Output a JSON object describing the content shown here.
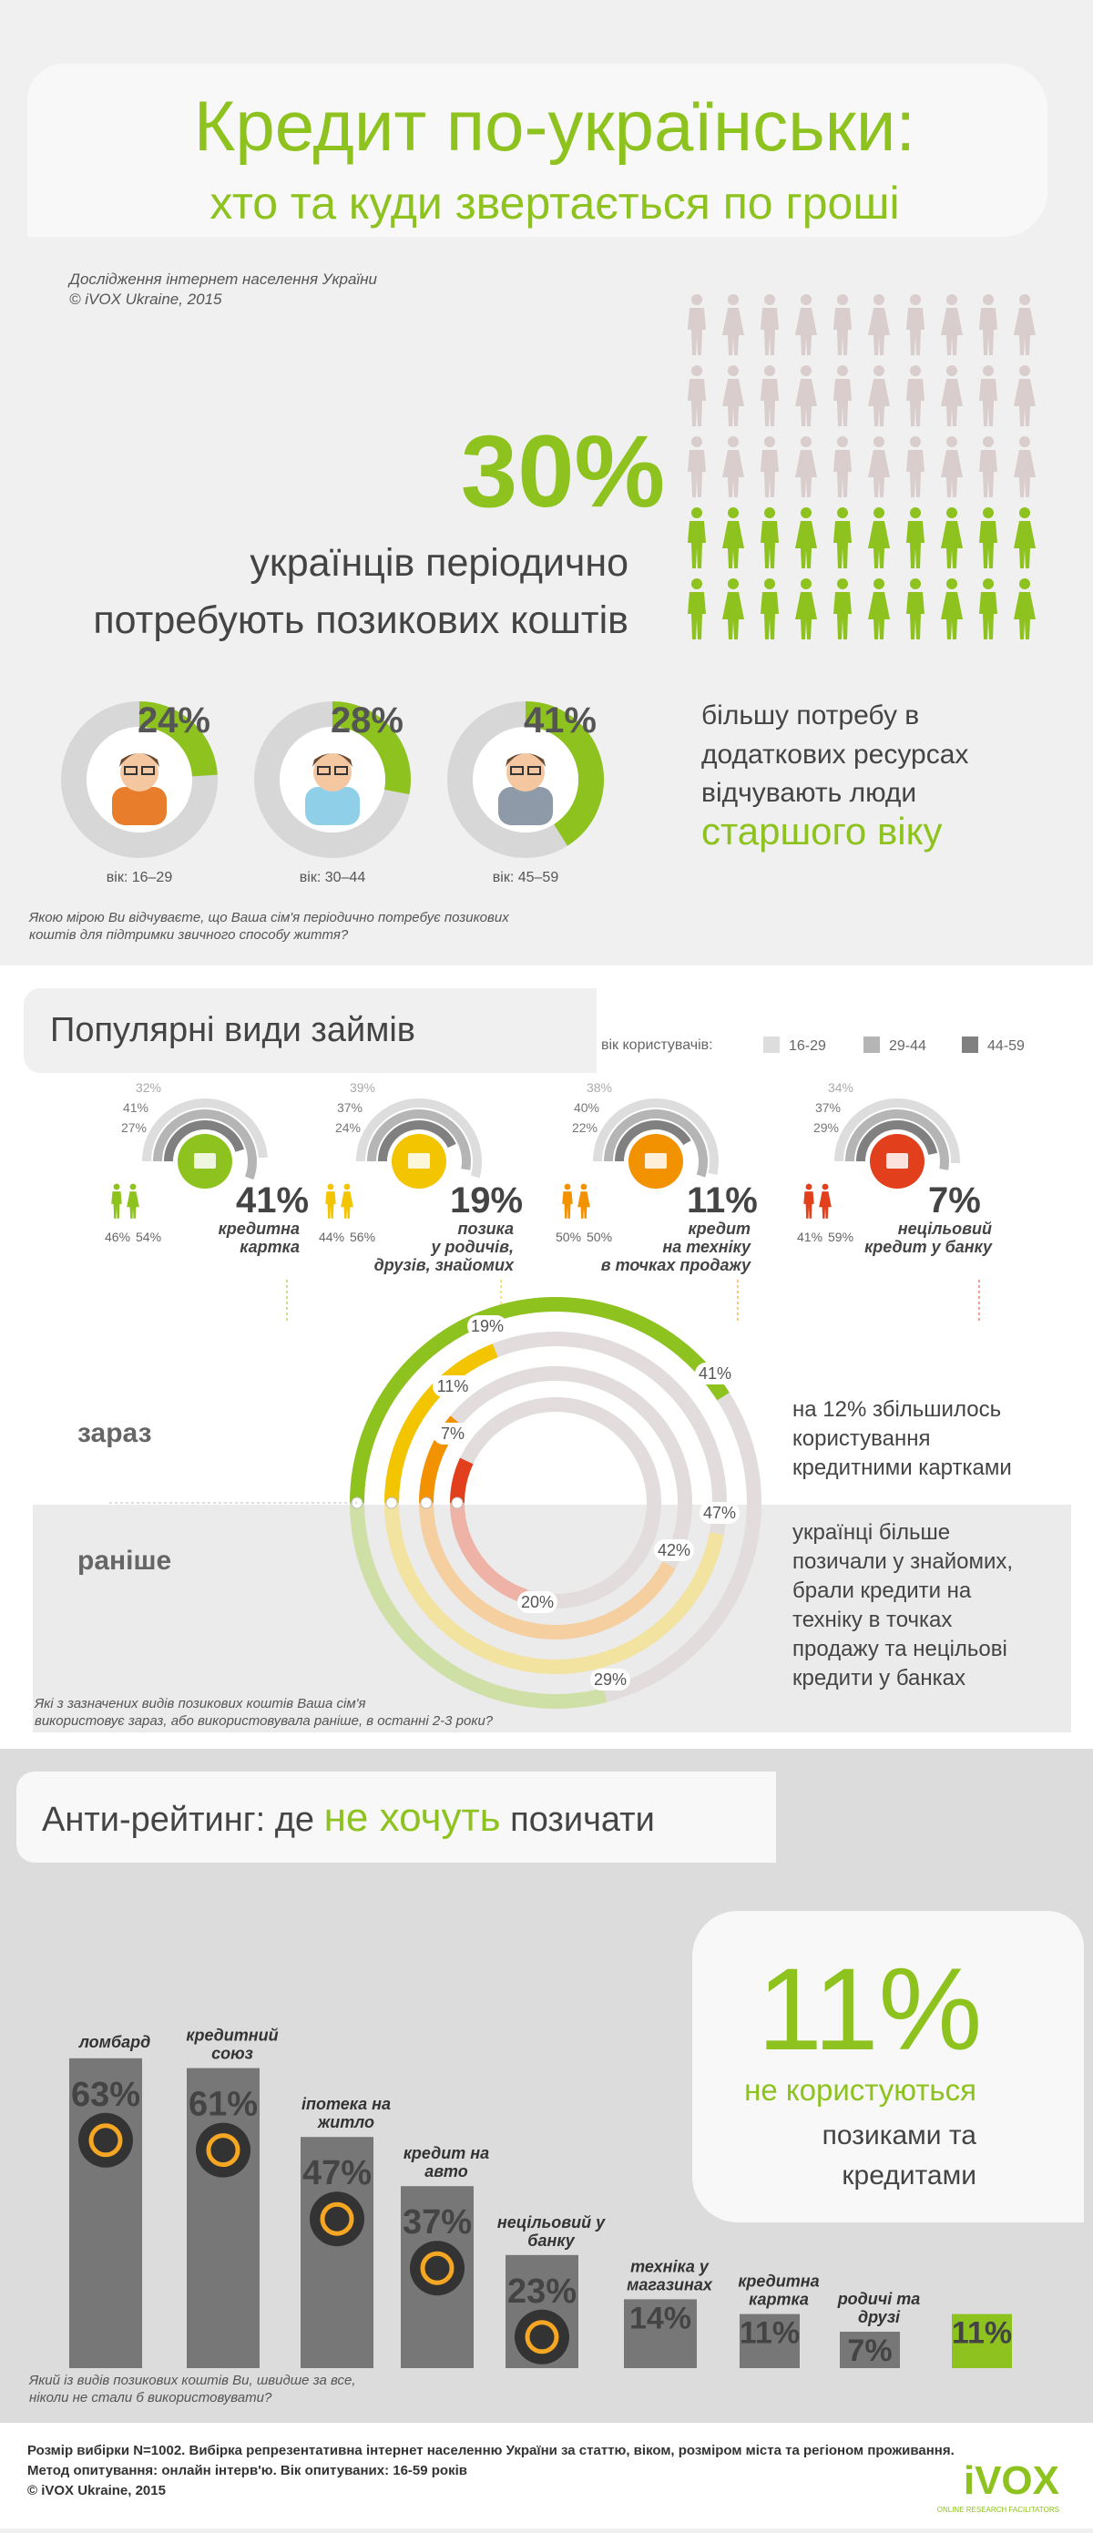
{
  "header": {
    "title_line1": "Кредит по-українськи:",
    "title_line2": "хто та куди звертається по гроші",
    "source_line1": "Дослідження інтернет населення України",
    "source_line2": "© iVOX Ukraine, 2015"
  },
  "section1": {
    "big_percent": "30%",
    "big_text_line1": "українців періодично",
    "big_text_line2": "потребують позикових коштів",
    "age_groups": [
      {
        "percent": "24%",
        "value": 24,
        "label": "вік: 16–29"
      },
      {
        "percent": "28%",
        "value": 28,
        "label": "вік: 30–44"
      },
      {
        "percent": "41%",
        "value": 41,
        "label": "вік: 45–59"
      }
    ],
    "side_text_line1": "більшу потребу в",
    "side_text_line2": "додаткових ресурсах",
    "side_text_line3": "відчувають люди",
    "side_text_highlight": "старшого віку",
    "question_line1": "Якою мірою Ви відчуваєте, що Ваша сім'я періодично потребує позикових",
    "question_line2": "коштів для підтримки звичного способу життя?"
  },
  "section2": {
    "title": "Популярні види займів",
    "legend_label": "вік користувачів:",
    "legend": [
      {
        "label": "16-29",
        "color": "#dddddd"
      },
      {
        "label": "29-44",
        "color": "#b5b5b5"
      },
      {
        "label": "44-59",
        "color": "#808080"
      }
    ],
    "loans": [
      {
        "percent": "41%",
        "name_line1": "кредитна",
        "name_line2": "картка",
        "name_line3": "",
        "ages": [
          "32%",
          "41%",
          "27%"
        ],
        "gender": [
          "46%",
          "54%"
        ],
        "color": "#8dc21f"
      },
      {
        "percent": "19%",
        "name_line1": "позика",
        "name_line2": "у родичів,",
        "name_line3": "друзів, знайомих",
        "ages": [
          "39%",
          "37%",
          "24%"
        ],
        "gender": [
          "44%",
          "56%"
        ],
        "color": "#f2c500"
      },
      {
        "percent": "11%",
        "name_line1": "кредит",
        "name_line2": "на техніку",
        "name_line3": "в точках продажу",
        "ages": [
          "38%",
          "40%",
          "22%"
        ],
        "gender": [
          "50%",
          "50%"
        ],
        "color": "#f39200"
      },
      {
        "percent": "7%",
        "name_line1": "нецільовий",
        "name_line2": "кредит у банку",
        "name_line3": "",
        "ages": [
          "34%",
          "37%",
          "29%"
        ],
        "gender": [
          "41%",
          "59%"
        ],
        "color": "#e2401c"
      }
    ],
    "now_label": "зараз",
    "before_label": "раніше",
    "now_text_line1": "на 12% збільшилось",
    "now_text_line2": "користування",
    "now_text_line3": "кредитними картками",
    "before_text_line1": "українці більше",
    "before_text_line2": "позичали у знайомих,",
    "before_text_line3": "брали кредити на",
    "before_text_line4": "техніку в точках",
    "before_text_line5": "продажу та нецільові",
    "before_text_line6": "кредити у банках",
    "question_line1": "Які з зазначених видів позикових коштів Ваша сім'я",
    "question_line2": "використовує зараз, або використовувала раніше, в останні 2-3 роки?"
  },
  "section3": {
    "title_part1": "Анти-рейтинг: де ",
    "title_part2": "не хочуть",
    "title_part3": " позичати",
    "big_percent": "11%",
    "big_line1": "не користуються",
    "big_line2": "позиками та",
    "big_line3": "кредитами",
    "question_line1": "Який із видів позикових коштів Ви, швидше за все,",
    "question_line2": "ніколи не стали б використовувати?"
  },
  "footer": {
    "line1": "Розмір вибірки N=1002. Вибірка репрезентативна інтернет населенню України за статтю, віком, розміром міста та регіоном проживання.",
    "line2": "Метод опитування: онлайн інтерв'ю. Вік опитуваних: 16-59 років",
    "line3": "© iVOX Ukraine, 2015",
    "logo": "iVOX",
    "logo_tagline": "ONLINE RESEARCH FACILITATORS"
  },
  "chart_data": [
    {
      "type": "pie",
      "title": "",
      "categories": [
        "вік: 16–29",
        "вік: 30–44",
        "вік: 45–59"
      ],
      "values": [
        24,
        28,
        41
      ]
    },
    {
      "type": "bar",
      "title": "",
      "categories": [
        "зараз",
        "раніше"
      ],
      "series": [
        {
          "name": "кредитна картка",
          "values": [
            41,
            29
          ]
        },
        {
          "name": "позика у родичів, друзів, знайомих",
          "values": [
            19,
            47
          ]
        },
        {
          "name": "кредит на техніку в точках продажу",
          "values": [
            11,
            42
          ]
        },
        {
          "name": "нецільовий кредит у банку",
          "values": [
            7,
            20
          ]
        }
      ]
    },
    {
      "type": "bar",
      "title": "",
      "categories": [
        "ломбард",
        "кредитний союз",
        "іпотека на житло",
        "кредит на авто",
        "нецільовий у банку",
        "техніка у магазинах",
        "кредитна картка",
        "родичі та друзі",
        ""
      ],
      "values": [
        63,
        61,
        47,
        37,
        23,
        14,
        11,
        7,
        11
      ],
      "labels": [
        "63%",
        "61%",
        "47%",
        "37%",
        "23%",
        "14%",
        "11%",
        "7%",
        "11%"
      ]
    }
  ]
}
